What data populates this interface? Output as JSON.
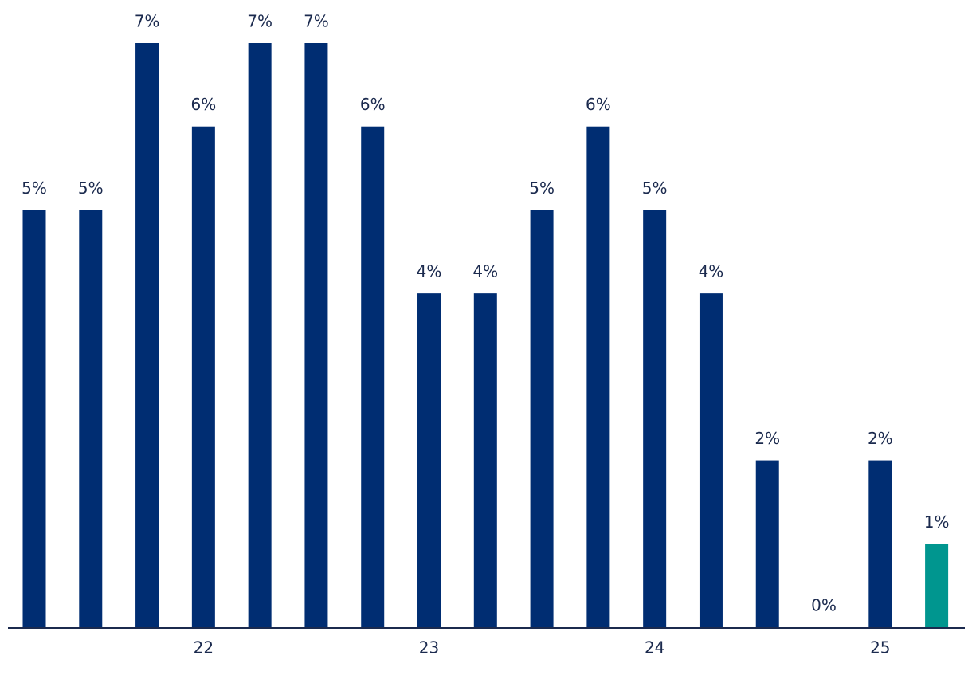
{
  "chart_data": {
    "type": "bar",
    "categories": [
      null,
      null,
      null,
      "22",
      null,
      null,
      null,
      "23",
      null,
      null,
      null,
      "24",
      null,
      null,
      null,
      "25",
      null
    ],
    "values": [
      5,
      5,
      7,
      6,
      7,
      7,
      6,
      4,
      4,
      5,
      6,
      5,
      4,
      2,
      0,
      2,
      1
    ],
    "value_labels": [
      "5%",
      "5%",
      "7%",
      "6%",
      "7%",
      "7%",
      "6%",
      "4%",
      "4%",
      "5%",
      "6%",
      "5%",
      "4%",
      "2%",
      "0%",
      "2%",
      "1%"
    ],
    "colors": [
      "#002d72",
      "#002d72",
      "#002d72",
      "#002d72",
      "#002d72",
      "#002d72",
      "#002d72",
      "#002d72",
      "#002d72",
      "#002d72",
      "#002d72",
      "#002d72",
      "#002d72",
      "#002d72",
      "#002d72",
      "#002d72",
      "#00968f"
    ],
    "ylim": [
      0,
      7
    ]
  }
}
